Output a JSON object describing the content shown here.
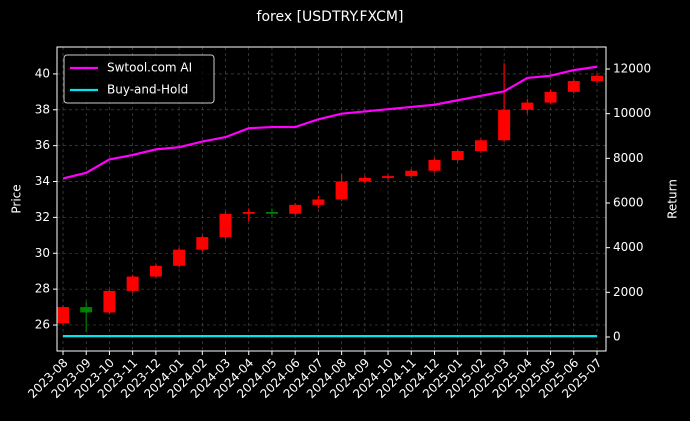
{
  "chart_data": {
    "type": "candlestick",
    "title": "forex [USDTRY.FXCM]",
    "y_label": "Price",
    "y2_label": "Return",
    "x": [
      "2023-08",
      "2023-09",
      "2023-10",
      "2023-11",
      "2023-12",
      "2024-01",
      "2024-02",
      "2024-03",
      "2024-04",
      "2024-05",
      "2024-06",
      "2024-07",
      "2024-08",
      "2024-09",
      "2024-10",
      "2024-11",
      "2024-12",
      "2025-01",
      "2025-02",
      "2025-03",
      "2025-04",
      "2025-05",
      "2025-06",
      "2025-07"
    ],
    "open": [
      26.1,
      27.0,
      26.7,
      27.9,
      28.7,
      29.3,
      30.2,
      30.9,
      32.2,
      32.3,
      32.2,
      32.7,
      33.0,
      34.0,
      34.2,
      34.3,
      34.6,
      35.2,
      35.7,
      36.3,
      38.0,
      38.4,
      39.0,
      39.6
    ],
    "high": [
      27.1,
      27.3,
      28.0,
      28.8,
      29.4,
      30.3,
      31.0,
      32.3,
      32.5,
      32.5,
      32.8,
      33.2,
      34.4,
      34.3,
      34.4,
      34.7,
      35.3,
      35.8,
      36.4,
      40.6,
      38.6,
      39.1,
      39.7,
      40.0
    ],
    "low": [
      26.0,
      25.6,
      26.6,
      27.8,
      28.6,
      29.2,
      30.1,
      30.8,
      31.8,
      32.0,
      32.1,
      32.5,
      32.9,
      33.9,
      34.1,
      34.2,
      34.5,
      35.1,
      35.6,
      36.2,
      37.8,
      38.3,
      38.9,
      39.5
    ],
    "close": [
      27.0,
      26.7,
      27.9,
      28.7,
      29.3,
      30.2,
      30.9,
      32.2,
      32.3,
      32.2,
      32.7,
      33.0,
      34.0,
      34.2,
      34.3,
      34.6,
      35.2,
      35.7,
      36.3,
      38.0,
      38.4,
      39.0,
      39.6,
      39.9
    ],
    "up_color": "#ff0000",
    "down_color": "#008000",
    "series": [
      {
        "name": "Swtool.com AI",
        "color": "#ff00ff",
        "axis": "y2",
        "values": [
          7100,
          7350,
          7950,
          8150,
          8400,
          8500,
          8750,
          8950,
          9350,
          9400,
          9400,
          9750,
          10000,
          10100,
          10200,
          10300,
          10400,
          10600,
          10800,
          11000,
          11600,
          11700,
          11950,
          12100
        ]
      },
      {
        "name": "Buy-and-Hold",
        "color": "#00e5ee",
        "axis": "y2",
        "values": [
          40,
          40,
          40,
          40,
          40,
          40,
          40,
          40,
          40,
          40,
          40,
          40,
          40,
          40,
          40,
          40,
          40,
          40,
          40,
          40,
          40,
          40,
          40,
          40
        ]
      }
    ],
    "xticks": [
      "2023-08",
      "2023-09",
      "2023-10",
      "2023-11",
      "2023-12",
      "2024-01",
      "2024-02",
      "2024-03",
      "2024-04",
      "2024-05",
      "2024-06",
      "2024-07",
      "2024-08",
      "2024-09",
      "2024-10",
      "2024-11",
      "2024-12",
      "2025-01",
      "2025-02",
      "2025-03",
      "2025-04",
      "2025-05",
      "2025-06",
      "2025-07"
    ],
    "xlim": [
      "2023-08",
      "2025-07"
    ],
    "ylim": [
      24.55,
      41.5
    ],
    "yticks": [
      26,
      28,
      30,
      32,
      34,
      36,
      38,
      40
    ],
    "y2lim": [
      -627,
      12985
    ],
    "y2ticks": [
      0,
      2000,
      4000,
      6000,
      8000,
      10000,
      12000
    ],
    "grid": true,
    "legend": "upper left"
  }
}
